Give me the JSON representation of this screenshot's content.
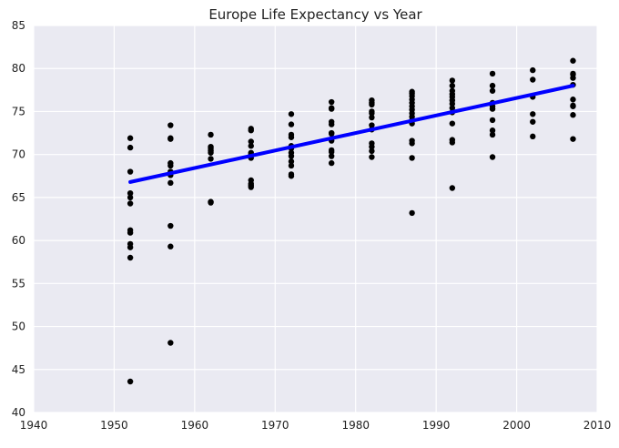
{
  "chart_data": {
    "type": "scatter",
    "title": "Europe Life Expectancy vs Year",
    "xlabel": "",
    "ylabel": "",
    "xlim": [
      1940,
      2010
    ],
    "ylim": [
      40,
      85
    ],
    "xticks": [
      1940,
      1950,
      1960,
      1970,
      1980,
      1990,
      2000,
      2010
    ],
    "yticks": [
      40,
      45,
      50,
      55,
      60,
      65,
      70,
      75,
      80,
      85
    ],
    "grid": true,
    "background_color": "#eaeaf2",
    "grid_color": "#ffffff",
    "point_color": "#000000",
    "line_color": "#0000ff",
    "points": [
      {
        "year": 1952,
        "values": [
          43.6,
          58.0,
          59.2,
          59.6,
          60.9,
          61.2,
          64.3,
          65.0,
          65.5,
          68.0,
          70.8,
          71.9
        ]
      },
      {
        "year": 1957,
        "values": [
          48.1,
          59.3,
          61.7,
          66.7,
          67.6,
          68.0,
          68.7,
          69.0,
          71.8,
          71.9,
          73.4
        ]
      },
      {
        "year": 1962,
        "values": [
          64.4,
          64.5,
          69.5,
          70.2,
          70.4,
          70.5,
          70.7,
          70.9,
          72.3
        ]
      },
      {
        "year": 1967,
        "values": [
          66.2,
          66.4,
          66.6,
          67.0,
          69.6,
          70.0,
          70.2,
          71.0,
          71.5,
          72.8,
          73.0
        ]
      },
      {
        "year": 1972,
        "values": [
          67.5,
          67.7,
          68.7,
          69.2,
          69.8,
          70.2,
          70.7,
          71.0,
          72.0,
          72.3,
          73.5,
          74.7
        ]
      },
      {
        "year": 1977,
        "values": [
          69.0,
          69.8,
          70.3,
          70.5,
          71.6,
          72.4,
          72.5,
          73.5,
          73.8,
          75.3,
          75.4,
          76.1
        ]
      },
      {
        "year": 1982,
        "values": [
          69.7,
          70.4,
          70.9,
          71.3,
          72.9,
          73.4,
          74.3,
          74.8,
          75.0,
          75.8,
          76.0,
          76.3
        ]
      },
      {
        "year": 1987,
        "values": [
          63.2,
          69.6,
          71.3,
          71.6,
          73.6,
          74.0,
          74.4,
          74.8,
          75.2,
          75.6,
          76.0,
          76.4,
          76.8,
          77.1,
          77.3
        ]
      },
      {
        "year": 1992,
        "values": [
          66.1,
          71.4,
          71.7,
          73.6,
          74.9,
          75.4,
          75.9,
          76.3,
          76.7,
          77.0,
          77.4,
          78.0,
          78.6
        ]
      },
      {
        "year": 1997,
        "values": [
          69.7,
          72.3,
          72.8,
          74.0,
          75.3,
          75.6,
          76.0,
          77.4,
          78.0,
          79.4
        ]
      },
      {
        "year": 2002,
        "values": [
          72.1,
          73.8,
          74.7,
          76.7,
          78.7,
          79.8
        ]
      },
      {
        "year": 2007,
        "values": [
          71.8,
          74.6,
          75.6,
          75.7,
          76.4,
          78.1,
          78.9,
          79.3,
          79.4,
          80.9
        ]
      }
    ],
    "regression_line": {
      "x": [
        1952,
        2007
      ],
      "y": [
        66.8,
        78.0
      ]
    }
  }
}
